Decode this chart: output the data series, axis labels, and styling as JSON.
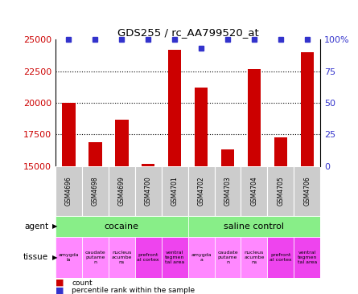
{
  "title": "GDS255 / rc_AA799520_at",
  "samples": [
    "GSM4696",
    "GSM4698",
    "GSM4699",
    "GSM4700",
    "GSM4701",
    "GSM4702",
    "GSM4703",
    "GSM4704",
    "GSM4705",
    "GSM4706"
  ],
  "counts": [
    20000,
    16900,
    18700,
    15200,
    24200,
    21200,
    16300,
    22700,
    17300,
    24000
  ],
  "percentiles": [
    100,
    100,
    100,
    100,
    100,
    93,
    100,
    100,
    100,
    100
  ],
  "ymin": 15000,
  "ymax": 25000,
  "yticks": [
    15000,
    17500,
    20000,
    22500,
    25000
  ],
  "right_yticks": [
    0,
    25,
    50,
    75,
    100
  ],
  "bar_color": "#cc0000",
  "dot_color": "#3333cc",
  "bar_width": 0.5,
  "tick_label_color_left": "#cc0000",
  "tick_label_color_right": "#3333cc",
  "grid_yticks": [
    17500,
    20000,
    22500
  ],
  "tissue_labels": [
    "amygda\nla",
    "caudate\nputame\nn",
    "nucleus\nacumbe\nns",
    "prefront\nal cortex",
    "ventral\ntegmen\ntal area",
    "amygda\na",
    "caudate\nputame\nn",
    "nucleus\nacumbe\nns",
    "prefront\nal cortex",
    "ventral\ntegmen\ntal area"
  ],
  "tissue_colors": [
    "#ff88ff",
    "#ff88ff",
    "#ff88ff",
    "#ee44ee",
    "#ee44ee",
    "#ff88ff",
    "#ff88ff",
    "#ff88ff",
    "#ee44ee",
    "#ee44ee"
  ],
  "agent_labels": [
    "cocaine",
    "saline control"
  ],
  "agent_color": "#88ee88",
  "sample_box_color": "#cccccc",
  "background": "#ffffff"
}
